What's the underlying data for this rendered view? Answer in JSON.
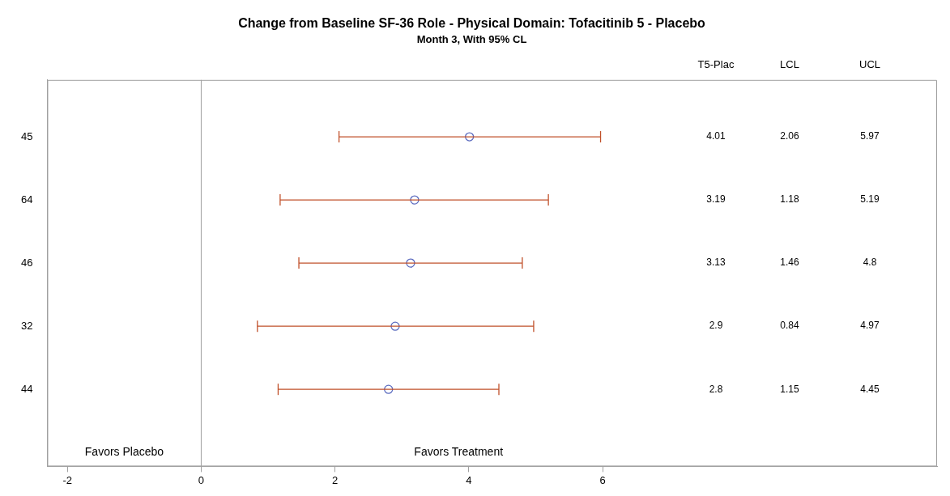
{
  "chart_data": {
    "type": "scatter",
    "title": "Change from Baseline SF-36 Role - Physical Domain: Tofacitinib 5 - Placebo",
    "subtitle": "Month 3, With 95% CL",
    "orientation": "horizontal",
    "categories": [
      "45",
      "64",
      "46",
      "32",
      "44"
    ],
    "values": [
      4.01,
      3.19,
      3.13,
      2.9,
      2.8
    ],
    "errors": [
      [
        2.06,
        5.97
      ],
      [
        1.18,
        5.19
      ],
      [
        1.46,
        4.8
      ],
      [
        0.84,
        4.97
      ],
      [
        1.15,
        4.45
      ]
    ],
    "color": "#5b6bbf",
    "marker": "circle",
    "xlim": [
      -2.3,
      11
    ],
    "xticks": [
      -2,
      0,
      2,
      4,
      6
    ],
    "ref_lines": [
      {
        "axis": "x",
        "value": 0,
        "color": "#a0a0a0"
      }
    ],
    "annotations": [
      "T5-Plac",
      "LCL",
      "UCL",
      "Favors Placebo",
      "Favors Treatment",
      "4.01",
      "2.06",
      "5.97",
      "3.19",
      "1.18",
      "5.19",
      "3.13",
      "1.46",
      "4.8",
      "2.9",
      "0.84",
      "4.97",
      "2.8",
      "1.15",
      "4.45"
    ],
    "grid": false,
    "legend": false
  }
}
